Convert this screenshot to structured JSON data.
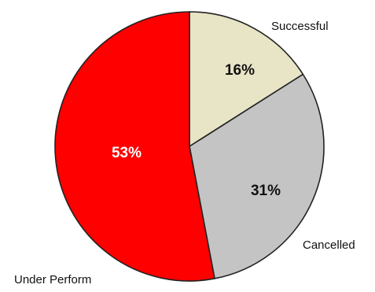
{
  "chart_data": {
    "type": "pie",
    "slices": [
      {
        "label": "Successful",
        "value": 16,
        "value_label": "16%",
        "color": "#e8e4c6",
        "value_text_color": "#111111"
      },
      {
        "label": "Cancelled",
        "value": 31,
        "value_label": "31%",
        "color": "#c4c4c4",
        "value_text_color": "#111111"
      },
      {
        "label": "Under Perform",
        "value": 53,
        "value_label": "53%",
        "color": "#ff0000",
        "value_text_color": "#ffffff"
      }
    ],
    "start_angle_deg": 0,
    "direction": "clockwise",
    "legend": "none",
    "outline_color": "#222222"
  }
}
